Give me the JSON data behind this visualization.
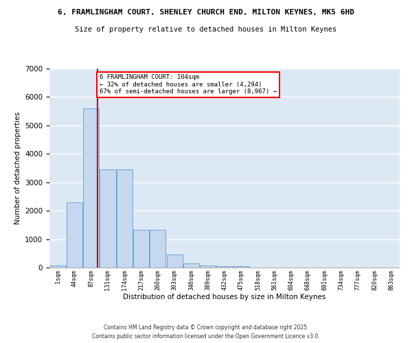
{
  "title1": "6, FRAMLINGHAM COURT, SHENLEY CHURCH END, MILTON KEYNES, MK5 6HD",
  "title2": "Size of property relative to detached houses in Milton Keynes",
  "xlabel": "Distribution of detached houses by size in Milton Keynes",
  "ylabel": "Number of detached properties",
  "bin_labels": [
    "1sqm",
    "44sqm",
    "87sqm",
    "131sqm",
    "174sqm",
    "217sqm",
    "260sqm",
    "303sqm",
    "346sqm",
    "389sqm",
    "432sqm",
    "475sqm",
    "518sqm",
    "561sqm",
    "604sqm",
    "648sqm",
    "691sqm",
    "734sqm",
    "777sqm",
    "820sqm",
    "863sqm"
  ],
  "bar_values": [
    75,
    2300,
    5600,
    3450,
    3450,
    1320,
    1320,
    460,
    150,
    75,
    60,
    40,
    0,
    0,
    0,
    0,
    0,
    0,
    0,
    0,
    0
  ],
  "bar_color": "#c5d8f0",
  "bar_edge_color": "#5b9bd5",
  "vline_color": "#cc0000",
  "annotation_text": "6 FRAMLINGHAM COURT: 104sqm\n← 32% of detached houses are smaller (4,294)\n67% of semi-detached houses are larger (8,967) →",
  "ylim": [
    0,
    7000
  ],
  "yticks": [
    0,
    1000,
    2000,
    3000,
    4000,
    5000,
    6000,
    7000
  ],
  "background_color": "#dde8f5",
  "grid_color": "white",
  "footer1": "Contains HM Land Registry data © Crown copyright and database right 2025.",
  "footer2": "Contains public sector information licensed under the Open Government Licence v3.0."
}
